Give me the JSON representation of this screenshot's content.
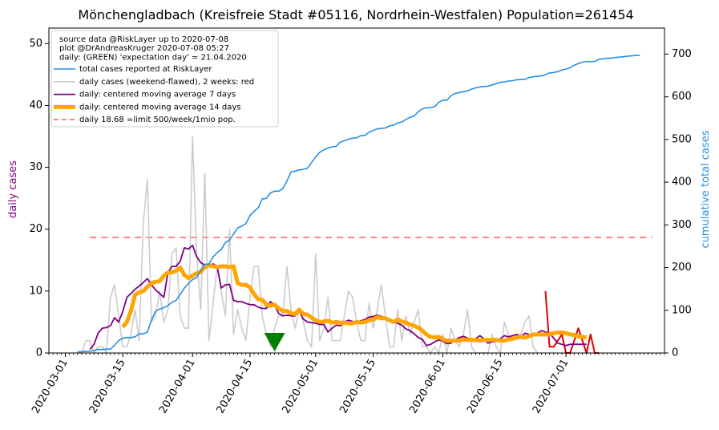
{
  "chart_data": {
    "type": "line",
    "title": "Mönchengladbach (Kreisfreie Stadt #05116, Nordrhein-Westfalen) Population=261454",
    "xlabel": "",
    "ylabel_left": "daily cases",
    "ylabel_right": "cumulative total cases",
    "x_range": [
      "2020-02-26",
      "2020-07-25"
    ],
    "ylim_left": [
      0,
      52.5
    ],
    "ylim_right": [
      0,
      761
    ],
    "x_ticks": [
      "2020-03-01",
      "2020-03-15",
      "2020-04-01",
      "2020-04-15",
      "2020-05-01",
      "2020-05-15",
      "2020-06-01",
      "2020-06-15",
      "2020-07-01"
    ],
    "y_ticks_left": [
      "0",
      "10",
      "20",
      "30",
      "40",
      "50"
    ],
    "y_ticks_right": [
      "0",
      "100",
      "200",
      "300",
      "400",
      "500",
      "600",
      "700"
    ],
    "grid": false,
    "legend_position": "top-left",
    "legend_header": [
      "source data @RiskLayer up to 2020-07-08",
      "plot @DrAndreasKruger 2020-07-08 05:27",
      "daily: (GREEN) 'expectation day' = 21.04.2020"
    ],
    "colors": {
      "total": "#2590e6",
      "daily": "#cccccc",
      "daily_recent": "#e60000",
      "ma7": "#800080",
      "ma14": "#ffa500",
      "limit": "#ff6666",
      "expectation_marker": "#008000",
      "ylabel_left": "#800080",
      "ylabel_right": "#2590e6"
    },
    "expectation_day": "2020-04-21",
    "limit_value": 18.68,
    "series": [
      {
        "name": "total cases reported at RiskLayer",
        "axis": "right",
        "x_start": "2020-03-04",
        "values": [
          3,
          3,
          4,
          4,
          6,
          8,
          8,
          9,
          9,
          18,
          29,
          35,
          36,
          36,
          38,
          45,
          45,
          49,
          77,
          98,
          103,
          106,
          111,
          119,
          123,
          137,
          152,
          163,
          172,
          177,
          193,
          208,
          208,
          225,
          235,
          242,
          259,
          264,
          279,
          293,
          297,
          303,
          322,
          332,
          340,
          361,
          362,
          375,
          379,
          379,
          385,
          403,
          424,
          426,
          429,
          430,
          433,
          446,
          459,
          470,
          476,
          480,
          483,
          484,
          494,
          497,
          501,
          503,
          504,
          509,
          510,
          517,
          521,
          525,
          526,
          527,
          532,
          534,
          539,
          541,
          547,
          552,
          555,
          565,
          572,
          574,
          575,
          577,
          587,
          592,
          592,
          603,
          608,
          610,
          612,
          614,
          618,
          621,
          623,
          624,
          625,
          628,
          631,
          634,
          635,
          637,
          638,
          640,
          641,
          641,
          645,
          647,
          648,
          649,
          652,
          656,
          657,
          659,
          663,
          665,
          668,
          674,
          678,
          681,
          683,
          682,
          683,
          688,
          689,
          690,
          691,
          692,
          693,
          694,
          695,
          696,
          697,
          697
        ]
      },
      {
        "name": "daily cases (weekend-flawed), 2 weeks: red",
        "axis": "left",
        "x_start": "2020-03-04",
        "values": [
          0,
          0,
          2,
          2,
          0,
          1,
          1,
          0,
          9,
          11,
          6,
          1,
          1,
          3,
          7,
          2,
          21,
          28,
          5,
          6,
          10,
          5,
          7,
          16,
          17,
          6,
          4,
          4,
          35,
          16,
          7,
          29,
          2,
          8,
          14,
          10,
          6,
          20,
          3,
          7,
          4,
          2,
          9,
          14,
          14,
          6,
          3,
          1,
          4,
          6,
          6,
          14,
          7,
          4,
          7,
          5,
          2,
          1,
          16,
          2,
          4,
          9,
          2,
          2,
          2,
          6,
          10,
          9,
          5,
          2,
          2,
          8,
          4,
          7,
          11,
          6,
          1,
          1,
          7,
          2,
          6,
          3,
          5,
          7,
          1,
          1,
          0,
          1,
          0,
          3,
          0,
          4,
          2,
          1,
          3,
          7,
          1,
          0,
          0,
          0,
          0,
          3,
          1,
          0,
          5,
          3,
          2,
          3,
          3,
          5,
          6,
          1,
          0
        ]
      },
      {
        "name": "daily cases (last 2 weeks)",
        "axis": "left",
        "x_start": "2020-06-26",
        "values": [
          10,
          1,
          1,
          2,
          3,
          0,
          0,
          2,
          4,
          2,
          0,
          3,
          0,
          0
        ]
      },
      {
        "name": "daily: centered moving average 7 days",
        "axis": "left",
        "x_start": "2020-03-07",
        "values": [
          0.6,
          1.4,
          3.2,
          4,
          4.1,
          4.4,
          5.7,
          5.0,
          6.7,
          9.0,
          9.6,
          10.3,
          10.8,
          11.4,
          12.0,
          11.0,
          10.2,
          9.6,
          9.0,
          13.0,
          14.0,
          14.0,
          14.8,
          17.0,
          16.8,
          17.4,
          15.6,
          14.6,
          14.2,
          14.0,
          14.4,
          14.0,
          10.5,
          11.0,
          11.1,
          8.5,
          8.3,
          8.3,
          8.0,
          7.8,
          7.8,
          7.4,
          7.2,
          7.2,
          8.3,
          7.7,
          6.4,
          6.0,
          6.1,
          6.0,
          6.0,
          6.8,
          5.5,
          5.0,
          4.9,
          4.8,
          4.6,
          4.6,
          3.4,
          4.0,
          4.5,
          4.4,
          5.0,
          5.3,
          5.1,
          5.0,
          5.2,
          5.4,
          5.8,
          5.9,
          6.1,
          5.9,
          5.7,
          5.4,
          5.0,
          4.8,
          4.5,
          3.9,
          3.6,
          3.1,
          2.5,
          2.2,
          1.2,
          1.4,
          1.8,
          2.1,
          1.9,
          1.5,
          1.6,
          2.1,
          2.5,
          2.7,
          2.4,
          2.2,
          2.3,
          2.8,
          2.3,
          1.6,
          1.8,
          1.9,
          2.3,
          2.8,
          2.6,
          2.8,
          3.0,
          2.6,
          3.2,
          3.0,
          2.9,
          3.2,
          3.6,
          3.4,
          3.2,
          2.4,
          1.6,
          1.4,
          1.2,
          1.4,
          1.4,
          1.4,
          1.4,
          1.4
        ]
      },
      {
        "name": "daily: centered moving average 14 days",
        "axis": "left",
        "x_start": "2020-03-15",
        "values": [
          4.2,
          5.0,
          6.8,
          9.4,
          9.8,
          10.0,
          10.7,
          11.3,
          11.5,
          11.6,
          12.5,
          13.0,
          13.0,
          13.3,
          13.8,
          12.6,
          12.1,
          12.5,
          12.9,
          13.1,
          13.9,
          14.2,
          14.0,
          13.9,
          14.0,
          14.0,
          13.9,
          14.0,
          11.3,
          11.0,
          11.0,
          10.6,
          9.5,
          8.7,
          8.6,
          7.8,
          7.6,
          7.8,
          7.2,
          6.8,
          6.8,
          6.4,
          6.3,
          7.0,
          6.3,
          6.2,
          5.7,
          5.3,
          5.0,
          5.1,
          5.2,
          4.9,
          5.0,
          4.9,
          4.9,
          4.8,
          4.8,
          5.0,
          4.9,
          5.0,
          5.3,
          5.4,
          5.8,
          5.6,
          5.6,
          5.3,
          5.0,
          5.4,
          5.1,
          4.9,
          4.6,
          4.4,
          4.1,
          3.6,
          3.0,
          2.6,
          2.5,
          2.6,
          2.2,
          2.0,
          2.0,
          2.0,
          2.0,
          2.2,
          2.1,
          2.1,
          2.1,
          2.0,
          2.1,
          2.1,
          2.1,
          2.1,
          2.0,
          2.0,
          2.2,
          2.3,
          2.5,
          2.6,
          2.5,
          2.7,
          3.0,
          3.0,
          3.0,
          3.0,
          3.0,
          3.2,
          3.3,
          3.3,
          3.2,
          3.0,
          2.9,
          2.7,
          2.6,
          2.5
        ]
      },
      {
        "name": "daily 18.68 =limit 500/week/1mio pop.",
        "axis": "left",
        "x_start": "2020-03-07",
        "x_end": "2020-07-22",
        "constant": 18.68
      }
    ]
  }
}
